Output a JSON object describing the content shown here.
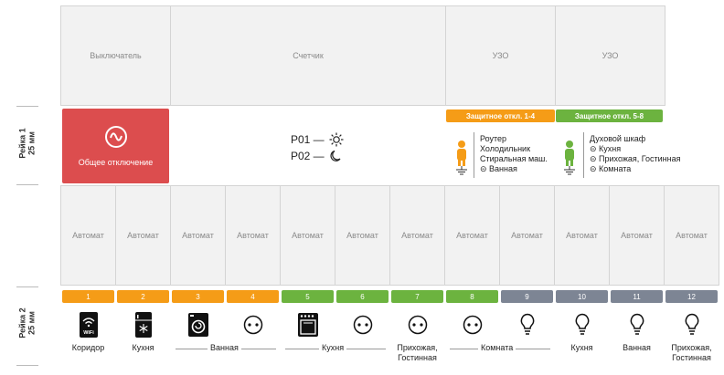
{
  "top_cells": {
    "switch": "Выключатель",
    "meter": "Счетчик",
    "rcd1": "УЗО",
    "rcd2": "УЗО"
  },
  "rail1": {
    "label": "Рейка 1",
    "size": "25 мм"
  },
  "rail2": {
    "label": "Рейка 2",
    "size": "25 мм"
  },
  "main_switch": {
    "label": "Общее отключение",
    "color": "#dc4d4e"
  },
  "tariffs": {
    "p01": "P01 —",
    "p02": "P02 —"
  },
  "protection": {
    "group1": {
      "badge": "Защитное откл. 1-4",
      "items": [
        "Роутер",
        "Холодильник",
        "Стиральная маш.",
        "⊝ Ванная"
      ]
    },
    "group2": {
      "badge": "Защитное откл. 5-8",
      "items": [
        "Духовой шкаф",
        "⊝ Кухня",
        "⊝ Прихожая, Гостинная",
        "⊝ Комната"
      ]
    }
  },
  "breaker_label": "Автомат",
  "numbers": [
    "1",
    "2",
    "3",
    "4",
    "5",
    "6",
    "7",
    "8",
    "9",
    "10",
    "11",
    "12"
  ],
  "labels": {
    "c1": "Коридор",
    "c2": "Кухня",
    "c7_line1": "Прихожая,",
    "c7_line2": "Гостинная",
    "c10": "Кухня",
    "c11": "Ванная",
    "c12_line1": "Прихожая,",
    "c12_line2": "Гостинная"
  },
  "groups": {
    "bath": "Ванная",
    "kitchen": "Кухня",
    "room": "Комната"
  },
  "icons": {
    "c1": "wifi-router-icon",
    "c2": "fridge-icon",
    "c3": "washing-machine-icon",
    "c4": "socket-icon",
    "c5": "oven-icon",
    "c6": "socket-icon",
    "c7": "socket-icon",
    "c8": "socket-icon",
    "c9": "lightbulb-icon",
    "c10": "lightbulb-icon",
    "c11": "lightbulb-icon",
    "c12": "lightbulb-icon"
  },
  "icon_text": {
    "wifi": "WiFi"
  },
  "colors": {
    "orange": "#f59c17",
    "green": "#6cb33f",
    "gray": "#7d8594",
    "red": "#dc4d4e"
  }
}
